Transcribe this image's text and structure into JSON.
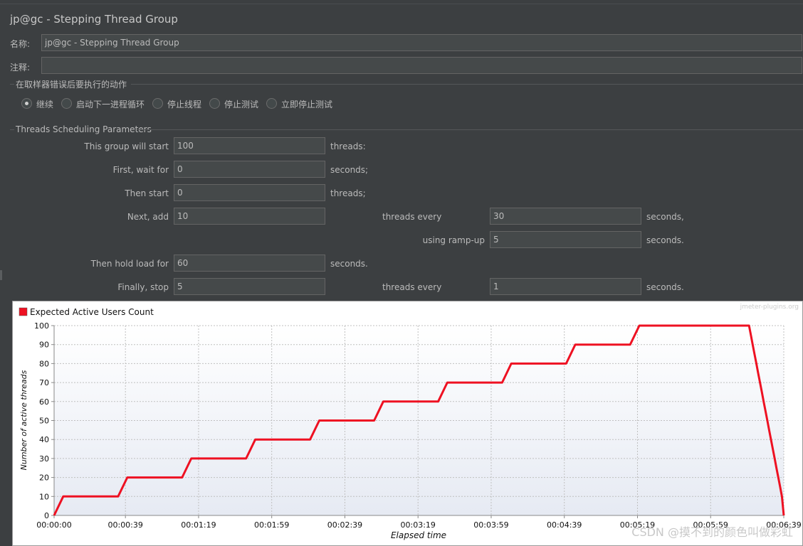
{
  "window": {
    "title": "jp@gc - Stepping Thread Group"
  },
  "form": {
    "name_label": "名称:",
    "name_value": "jp@gc - Stepping Thread Group",
    "comment_label": "注释:",
    "comment_value": ""
  },
  "error_action": {
    "heading": "在取样器错误后要执行的动作",
    "options": [
      {
        "label": "继续",
        "checked": true
      },
      {
        "label": "启动下一进程循环",
        "checked": false
      },
      {
        "label": "停止线程",
        "checked": false
      },
      {
        "label": "停止测试",
        "checked": false
      },
      {
        "label": "立即停止测试",
        "checked": false
      }
    ]
  },
  "params": {
    "heading": "Threads Scheduling Parameters",
    "start_label": "This group will start",
    "start_value": "100",
    "start_unit": "threads:",
    "wait_label": "First, wait for",
    "wait_value": "0",
    "wait_unit": "seconds;",
    "then_start_label": "Then start",
    "then_start_value": "0",
    "then_start_unit": "threads;",
    "next_add_label": "Next, add",
    "next_add_value": "10",
    "next_add_mid": "threads every",
    "next_add_every": "30",
    "next_add_unit": "seconds,",
    "rampup_label": "using ramp-up",
    "rampup_value": "5",
    "rampup_unit": "seconds.",
    "hold_label": "Then hold load for",
    "hold_value": "60",
    "hold_unit": "seconds.",
    "stop_label": "Finally, stop",
    "stop_value": "5",
    "stop_mid": "threads every",
    "stop_every": "1",
    "stop_unit": "seconds."
  },
  "chart_data": {
    "type": "line",
    "legend": "Expected Active Users Count",
    "watermark": "jmeter-plugins.org",
    "xlabel": "Elapsed time",
    "ylabel": "Number of active threads",
    "xlim": [
      0,
      399
    ],
    "ylim": [
      0,
      100
    ],
    "yticks": [
      0,
      10,
      20,
      30,
      40,
      50,
      60,
      70,
      80,
      90,
      100
    ],
    "xticks": [
      {
        "v": 0,
        "label": "00:00:00"
      },
      {
        "v": 39,
        "label": "00:00:39"
      },
      {
        "v": 79,
        "label": "00:01:19"
      },
      {
        "v": 119,
        "label": "00:01:59"
      },
      {
        "v": 159,
        "label": "00:02:39"
      },
      {
        "v": 199,
        "label": "00:03:19"
      },
      {
        "v": 239,
        "label": "00:03:59"
      },
      {
        "v": 279,
        "label": "00:04:39"
      },
      {
        "v": 319,
        "label": "00:05:19"
      },
      {
        "v": 359,
        "label": "00:05:59"
      },
      {
        "v": 399,
        "label": "00:06:39"
      }
    ],
    "color": "#ee1122",
    "series": [
      {
        "x": [
          0,
          5,
          35,
          40,
          70,
          75,
          105,
          110,
          140,
          145,
          175,
          180,
          210,
          215,
          245,
          250,
          280,
          285,
          315,
          320,
          380,
          381,
          382,
          383,
          384,
          385,
          386,
          387,
          388,
          389,
          390,
          391,
          392,
          393,
          394,
          395,
          396,
          397,
          398,
          399
        ],
        "y": [
          0,
          10,
          10,
          20,
          20,
          30,
          30,
          40,
          40,
          50,
          50,
          60,
          60,
          70,
          70,
          80,
          80,
          90,
          90,
          100,
          100,
          95,
          90,
          85,
          80,
          75,
          70,
          65,
          60,
          55,
          50,
          45,
          40,
          35,
          30,
          25,
          20,
          15,
          10,
          0
        ]
      }
    ]
  },
  "footer": {
    "watermark": "CSDN @摸不到的颜色叫做彩虹"
  }
}
